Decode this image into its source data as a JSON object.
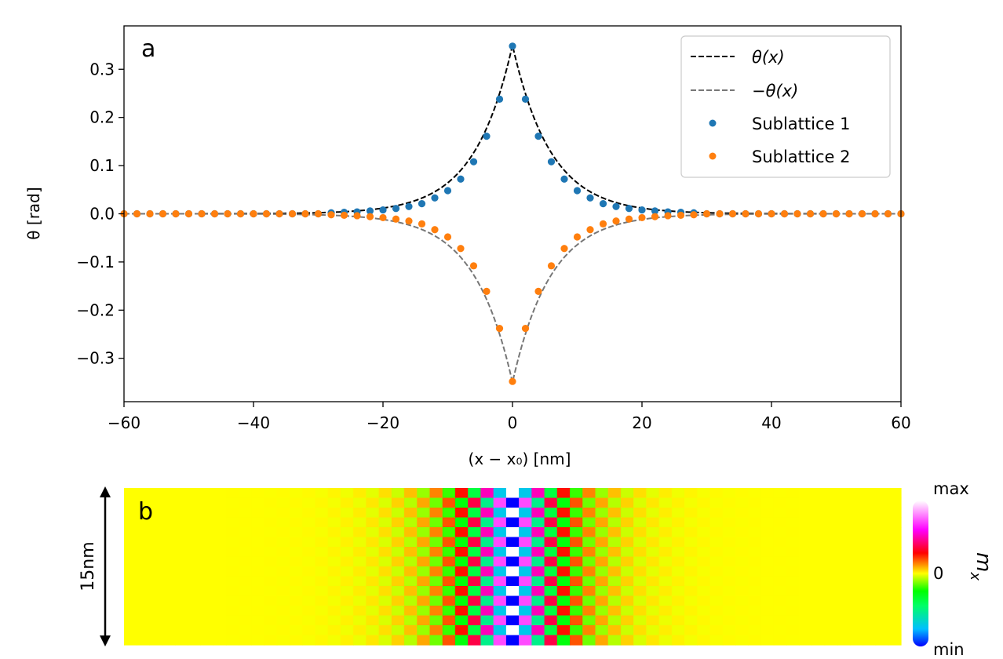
{
  "chart_data": [
    {
      "panel_label": "a",
      "type": "line",
      "xlabel": "(x − x₀) [nm]",
      "ylabel": "θ [rad]",
      "xlim": [
        -60,
        60
      ],
      "ylim": [
        -0.39,
        0.39
      ],
      "xticks": [
        -60,
        -40,
        -20,
        0,
        20,
        40,
        60
      ],
      "xtick_labels": [
        "−60",
        "−40",
        "−20",
        "0",
        "20",
        "40",
        "60"
      ],
      "yticks": [
        0.3,
        0.2,
        0.1,
        0.0,
        -0.1,
        -0.2,
        -0.3
      ],
      "ytick_labels": [
        "0.3",
        "0.2",
        "0.1",
        "0.0",
        "−0.1",
        "−0.2",
        "−0.3"
      ],
      "grid": false,
      "legend_position": "top-right",
      "model": {
        "theta0": 0.35,
        "decay_length_nm": 5.9
      },
      "series": [
        {
          "name": "θ(x)",
          "style": "dashed-line",
          "color": "#000000",
          "sign": 1
        },
        {
          "name": "−θ(x)",
          "style": "dashed-line",
          "color": "#777777",
          "sign": -1
        },
        {
          "name": "Sublattice 1",
          "style": "markers",
          "color": "#1f77b4",
          "x": [
            -60,
            -58,
            -56,
            -54,
            -52,
            -50,
            -48,
            -46,
            -44,
            -42,
            -40,
            -38,
            -36,
            -34,
            -32,
            -30,
            -28,
            -26,
            -24,
            -22,
            -20,
            -18,
            -16,
            -14,
            -12,
            -10,
            -8,
            -6,
            -4,
            -2,
            0,
            2,
            4,
            6,
            8,
            10,
            12,
            14,
            16,
            18,
            20,
            22,
            24,
            26,
            28,
            30,
            32,
            34,
            36,
            38,
            40,
            42,
            44,
            46,
            48,
            50,
            52,
            54,
            56,
            58,
            60
          ],
          "y": [
            0.0,
            0.0,
            0.0,
            0.0,
            0.0,
            0.0,
            0.0,
            0.0,
            0.0,
            0.0,
            0.0,
            0.0,
            0.0,
            0.0,
            0.0,
            0.0,
            0.002,
            0.003,
            0.004,
            0.006,
            0.008,
            0.011,
            0.015,
            0.021,
            0.033,
            0.048,
            0.072,
            0.108,
            0.161,
            0.238,
            0.348,
            0.238,
            0.161,
            0.108,
            0.072,
            0.048,
            0.033,
            0.021,
            0.015,
            0.011,
            0.008,
            0.006,
            0.004,
            0.003,
            0.002,
            0.0,
            0.0,
            0.0,
            0.0,
            0.0,
            0.0,
            0.0,
            0.0,
            0.0,
            0.0,
            0.0,
            0.0,
            0.0,
            0.0,
            0.0,
            0.0
          ]
        },
        {
          "name": "Sublattice 2",
          "style": "markers",
          "color": "#ff7f0e",
          "x": [
            -60,
            -58,
            -56,
            -54,
            -52,
            -50,
            -48,
            -46,
            -44,
            -42,
            -40,
            -38,
            -36,
            -34,
            -32,
            -30,
            -28,
            -26,
            -24,
            -22,
            -20,
            -18,
            -16,
            -14,
            -12,
            -10,
            -8,
            -6,
            -4,
            -2,
            0,
            2,
            4,
            6,
            8,
            10,
            12,
            14,
            16,
            18,
            20,
            22,
            24,
            26,
            28,
            30,
            32,
            34,
            36,
            38,
            40,
            42,
            44,
            46,
            48,
            50,
            52,
            54,
            56,
            58,
            60
          ],
          "y": [
            0.0,
            0.0,
            0.0,
            0.0,
            0.0,
            0.0,
            0.0,
            0.0,
            0.0,
            0.0,
            0.0,
            0.0,
            0.0,
            0.0,
            0.0,
            0.0,
            -0.002,
            -0.003,
            -0.004,
            -0.006,
            -0.008,
            -0.011,
            -0.015,
            -0.021,
            -0.033,
            -0.048,
            -0.072,
            -0.108,
            -0.161,
            -0.238,
            -0.348,
            -0.238,
            -0.161,
            -0.108,
            -0.072,
            -0.048,
            -0.033,
            -0.021,
            -0.015,
            -0.011,
            -0.008,
            -0.006,
            -0.004,
            -0.003,
            -0.002,
            0.0,
            0.0,
            0.0,
            0.0,
            0.0,
            0.0,
            0.0,
            0.0,
            0.0,
            0.0,
            0.0,
            0.0,
            0.0,
            0.0,
            0.0,
            0.0
          ]
        }
      ]
    },
    {
      "panel_label": "b",
      "type": "heatmap",
      "xlim": [
        -60,
        60
      ],
      "y_extent_label": "15nm",
      "rows": 16,
      "columns": 61,
      "quantity": "m_x",
      "colorbar": {
        "label": "m",
        "label_subscript": "x",
        "max_label": "max",
        "mid_label": "0",
        "min_label": "min"
      },
      "colormap": [
        "#0000ff",
        "#00bfff",
        "#00ff66",
        "#00ff00",
        "#ffff00",
        "#ff0000",
        "#ff00ff",
        "#ffffff"
      ],
      "checkerboard": true
    }
  ]
}
